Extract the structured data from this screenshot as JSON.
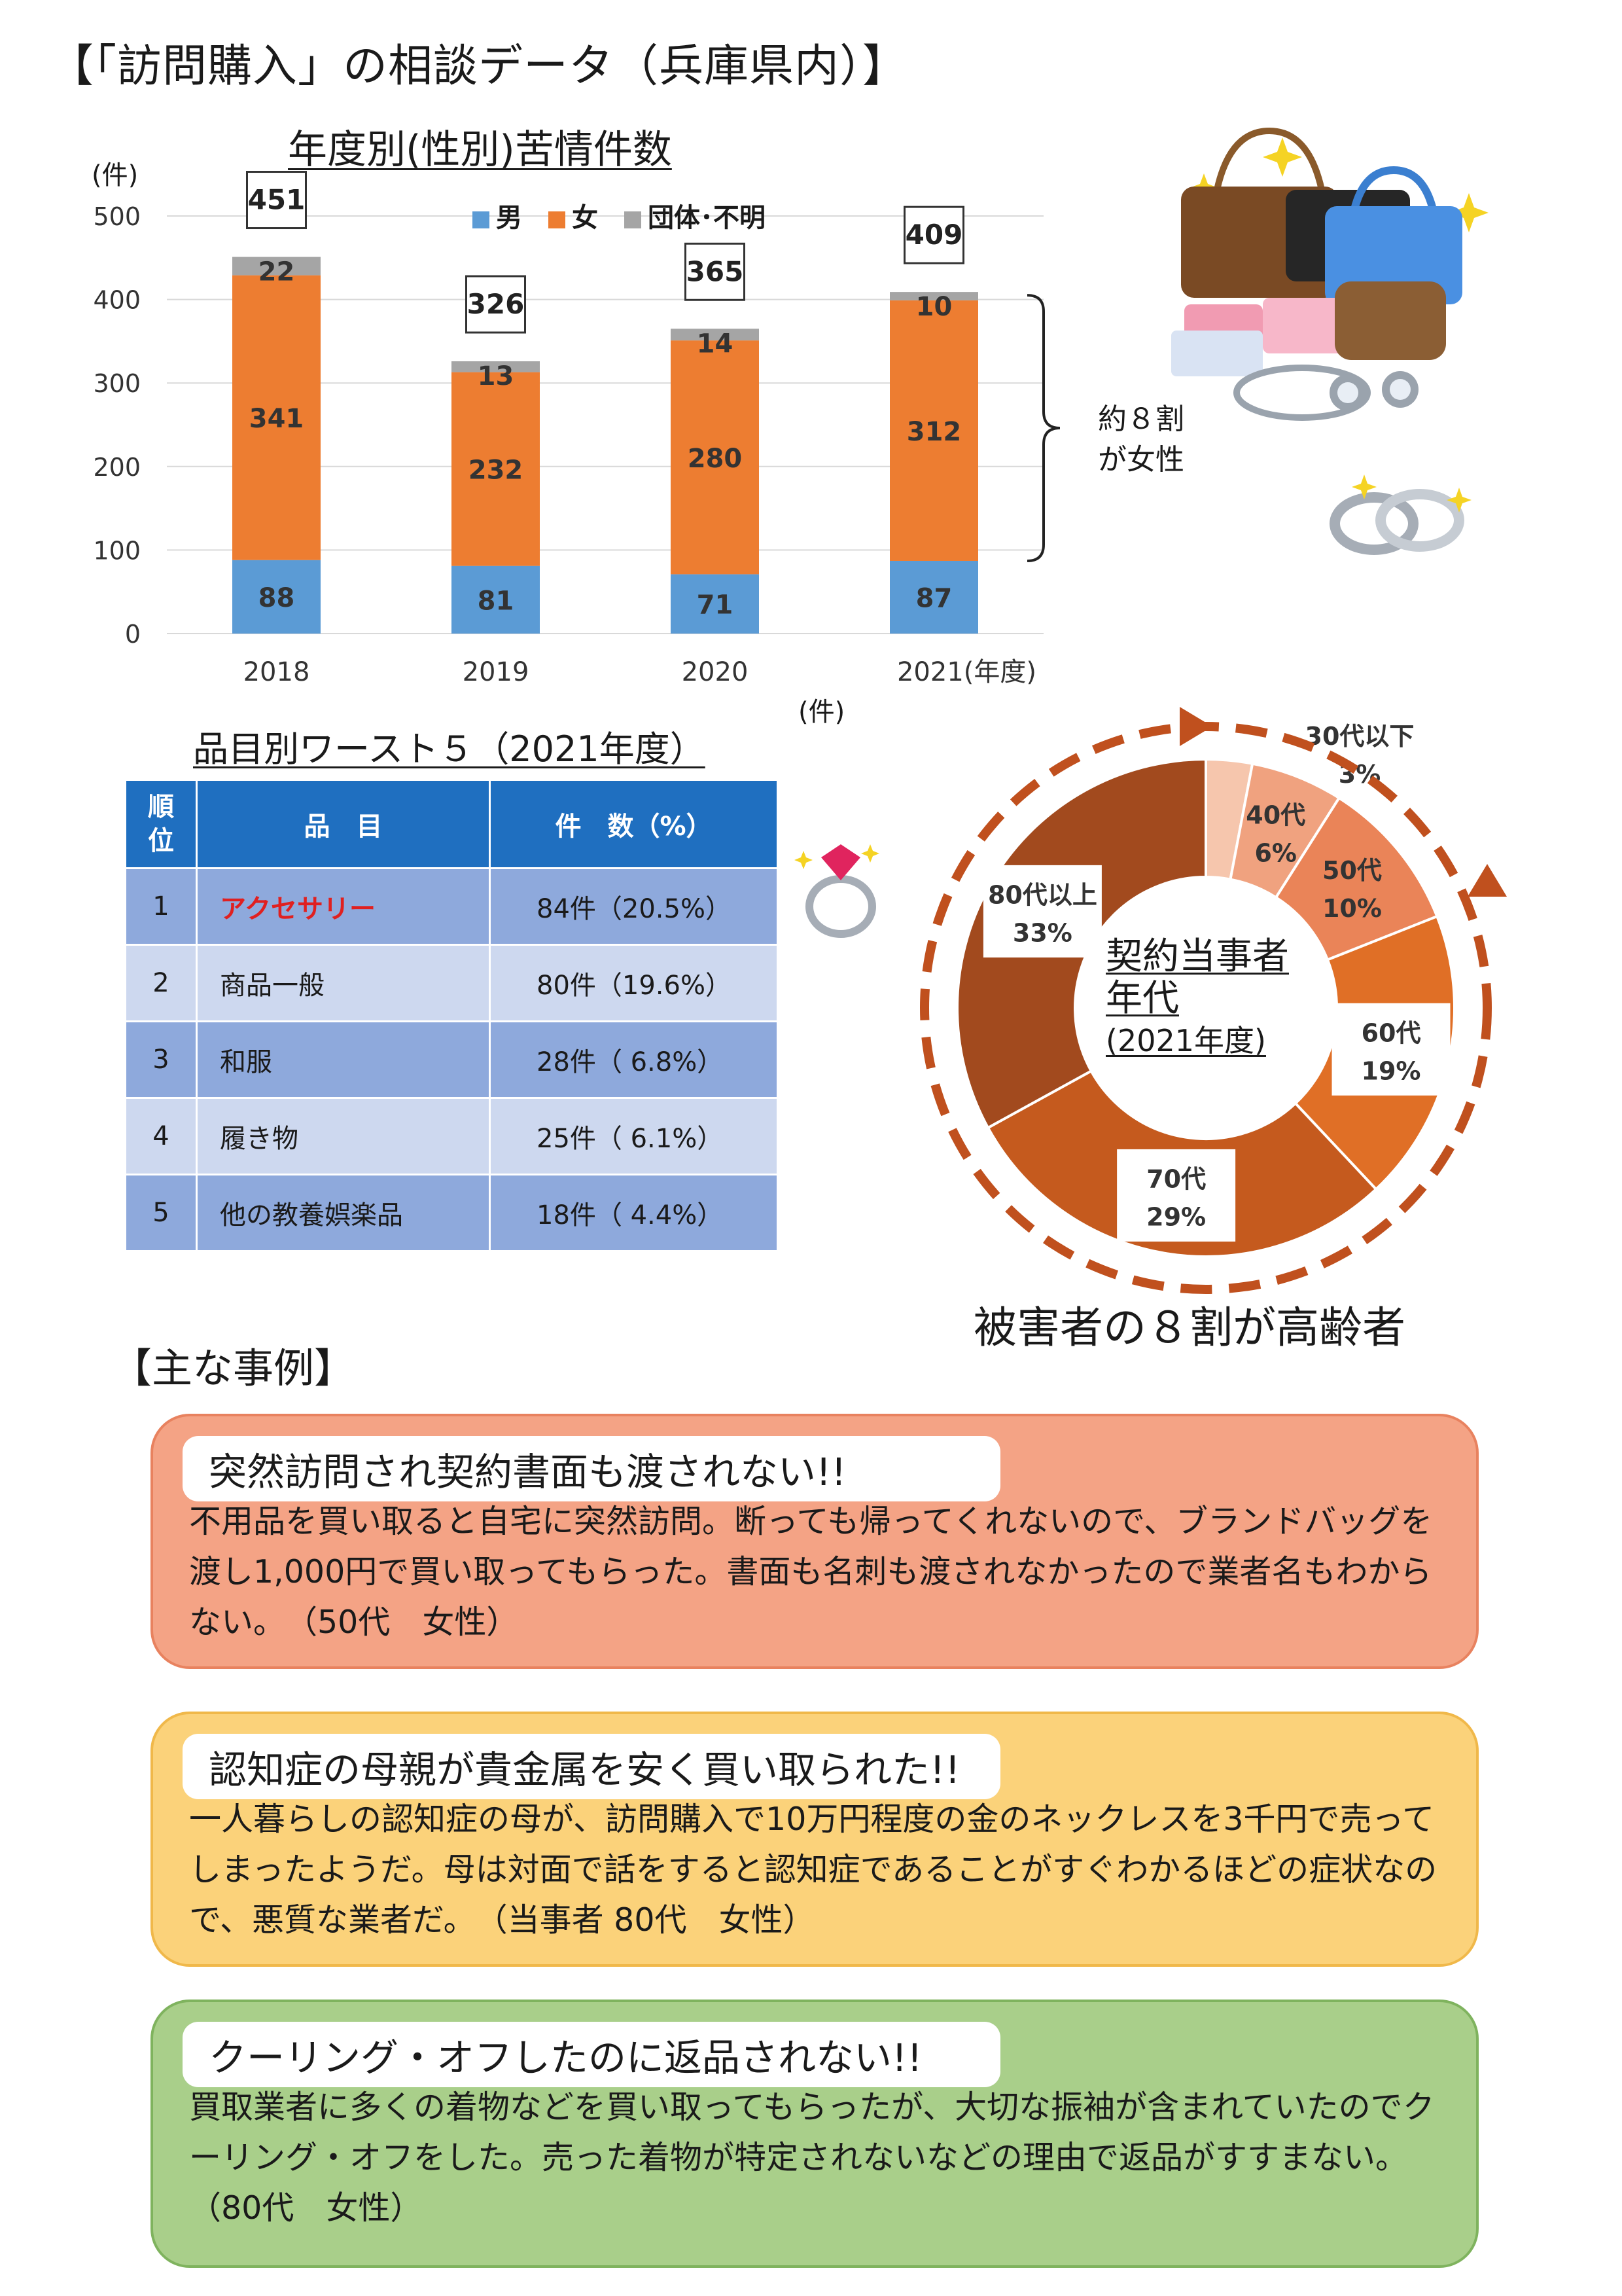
{
  "header": {
    "title": "【「訪問購入」の相談データ（兵庫県内）】"
  },
  "bar_section": {
    "title": "年度別(性別)苦情件数",
    "unit_label": "(件)",
    "brace_note_line1": "約８割",
    "brace_note_line2": "が女性"
  },
  "worst5": {
    "title": "品目別ワースト５（2021年度）",
    "unit_label": "(件)",
    "headers": [
      "順\n位",
      "品　目",
      "件　数（%）"
    ],
    "rows": [
      {
        "rank": "1",
        "item": "アクセサリー",
        "count": "84件（20.5%）"
      },
      {
        "rank": "2",
        "item": "商品一般",
        "count": "80件（19.6%）"
      },
      {
        "rank": "3",
        "item": "和服",
        "count": "28件（ 6.8%）"
      },
      {
        "rank": "4",
        "item": "履き物",
        "count": "25件（ 6.1%）"
      },
      {
        "rank": "5",
        "item": "他の教養娯楽品",
        "count": "18件（ 4.4%）"
      }
    ]
  },
  "donut_section": {
    "label_line1": "契約当事者",
    "label_line2": "年代",
    "label_line3": "(2021年度)",
    "caption": "被害者の８割が高齢者"
  },
  "cases": {
    "heading": "【主な事例】",
    "items": [
      {
        "title": "突然訪問され契約書面も渡されない!!",
        "text": "不用品を買い取ると自宅に突然訪問。断っても帰ってくれないので、ブランドバッグを渡し1,000円で買い取ってもらった。書面も名刺も渡されなかったので業者名もわからない。　（50代　女性）",
        "bg": "#f4a385",
        "border": "#e8825f"
      },
      {
        "title": "認知症の母親が貴金属を安く買い取られた!!",
        "text": "一人暮らしの認知症の母が、訪問購入で10万円程度の金のネックレスを3千円で売ってしまったようだ。母は対面で話をすると認知症であることがすぐわかるほどの症状なので、悪質な業者だ。　（当事者 80代　女性）",
        "bg": "#fbd27a",
        "border": "#f0b84a"
      },
      {
        "title": "クーリング・オフしたのに返品されない!!",
        "text": "買取業者に多くの着物などを買い取ってもらったが、大切な振袖が含まれていたのでクーリング・オフをした。売った着物が特定されないなどの理由で返品がすすまない。　（80代　女性）",
        "bg": "#a9cf8a",
        "border": "#7fb35e"
      }
    ]
  },
  "chart_data": [
    {
      "type": "bar",
      "stacked": true,
      "categories": [
        "2018",
        "2019",
        "2020",
        "2021(年度)"
      ],
      "series": [
        {
          "name": "男",
          "values": [
            88,
            81,
            71,
            87
          ],
          "color": "#5b9bd5"
        },
        {
          "name": "女",
          "values": [
            341,
            232,
            280,
            312
          ],
          "color": "#ed7d31"
        },
        {
          "name": "団体･不明",
          "values": [
            22,
            13,
            14,
            10
          ],
          "color": "#a5a5a5"
        }
      ],
      "totals": [
        451,
        326,
        365,
        409
      ],
      "ylim": [
        0,
        500
      ],
      "yticks": [
        0,
        100,
        200,
        300,
        400,
        500
      ],
      "ylabel": "(件)",
      "legend_position": "top",
      "grid": true
    },
    {
      "type": "pie",
      "donut": true,
      "slices": [
        {
          "label": "30代以下",
          "value": 3,
          "pct_label": "3%",
          "color": "#f6c6ad"
        },
        {
          "label": "40代",
          "value": 6,
          "pct_label": "6%",
          "color": "#f0a27f"
        },
        {
          "label": "50代",
          "value": 10,
          "pct_label": "10%",
          "color": "#ea8458"
        },
        {
          "label": "60代",
          "value": 19,
          "pct_label": "19%",
          "color": "#e06f26"
        },
        {
          "label": "70代",
          "value": 29,
          "pct_label": "29%",
          "color": "#c55a1e"
        },
        {
          "label": "80代以上",
          "value": 33,
          "pct_label": "33%",
          "color": "#a24a1e"
        }
      ]
    }
  ]
}
